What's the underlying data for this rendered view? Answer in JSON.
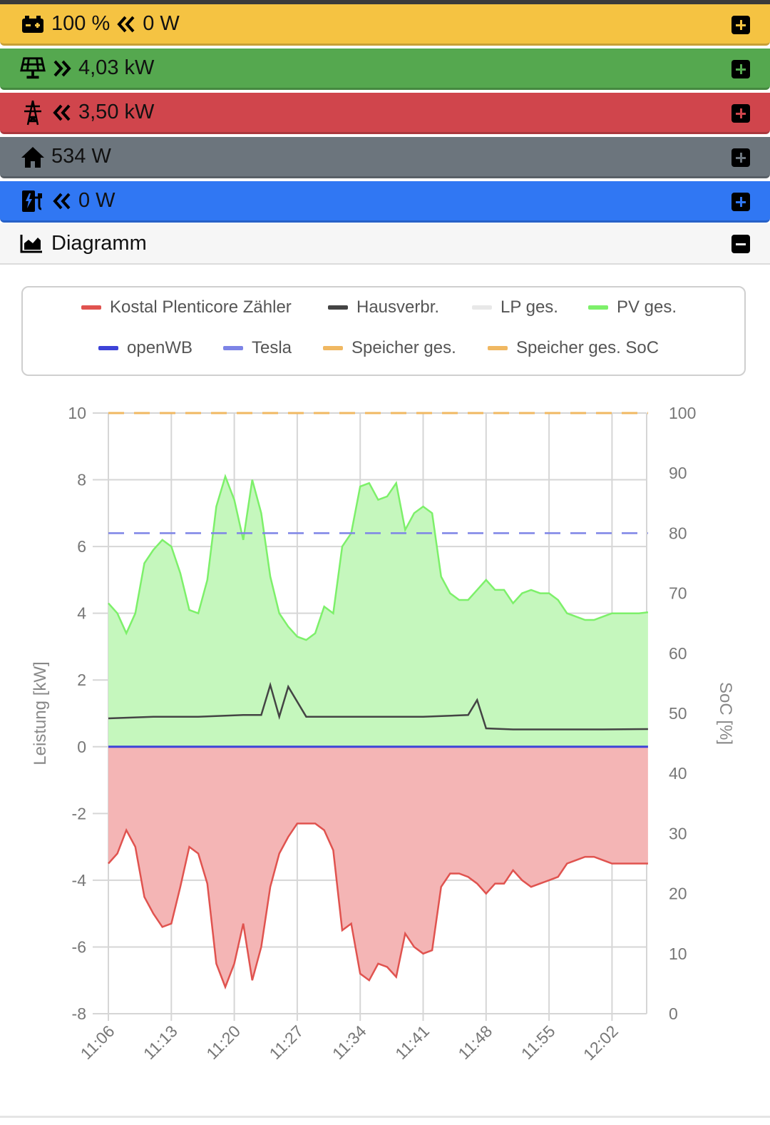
{
  "rows": {
    "battery": {
      "soc": "100 %",
      "power": "0 W",
      "color": "#f5c342"
    },
    "pv": {
      "power": "4,03 kW",
      "color": "#55a84f"
    },
    "grid": {
      "power": "3,50 kW",
      "color": "#d0454c"
    },
    "house": {
      "power": "534 W",
      "color": "#6c757d"
    },
    "charge": {
      "power": "0 W",
      "color": "#3077f3"
    }
  },
  "diagram": {
    "title": "Diagramm"
  },
  "chart_data": {
    "type": "area",
    "legend": [
      {
        "name": "Kostal Plenticore Zähler",
        "color": "#e0534f"
      },
      {
        "name": "Hausverbr.",
        "color": "#444444"
      },
      {
        "name": "LP ges.",
        "color": "#e8e8e8"
      },
      {
        "name": "PV ges.",
        "color": "#7df06a"
      },
      {
        "name": "openWB",
        "color": "#3d43d8"
      },
      {
        "name": "Tesla",
        "color": "#7d84e6"
      },
      {
        "name": "Speicher ges.",
        "color": "#f0b862"
      },
      {
        "name": "Speicher ges. SoC",
        "color": "#f0b862"
      }
    ],
    "ylabel": "Leistung [kW]",
    "y2label": "SoC [%]",
    "ylim": [
      -8,
      10
    ],
    "y2lim": [
      0,
      100
    ],
    "yticks": [
      "10",
      "8",
      "6",
      "4",
      "2",
      "0",
      "-2",
      "-4",
      "-6",
      "-8"
    ],
    "y2ticks": [
      "100",
      "90",
      "80",
      "70",
      "60",
      "50",
      "40",
      "30",
      "20",
      "10",
      "0"
    ],
    "xticks": [
      "11:06",
      "11:13",
      "11:20",
      "11:27",
      "11:34",
      "11:41",
      "11:48",
      "11:55",
      "12:02"
    ],
    "x_range_minutes": [
      0,
      60
    ],
    "series": [
      {
        "name": "PV ges.",
        "x": [
          0,
          1,
          2,
          3,
          4,
          5,
          6,
          7,
          8,
          9,
          10,
          11,
          12,
          13,
          14,
          15,
          16,
          17,
          18,
          19,
          20,
          21,
          22,
          23,
          24,
          25,
          26,
          27,
          28,
          29,
          30,
          31,
          32,
          33,
          34,
          35,
          36,
          37,
          38,
          39,
          40,
          41,
          42,
          43,
          44,
          45,
          46,
          47,
          48,
          49,
          50,
          51,
          52,
          53,
          54,
          55,
          56,
          57,
          58,
          59,
          60
        ],
        "values": [
          4.3,
          4.0,
          3.4,
          4.0,
          5.5,
          5.9,
          6.2,
          6.0,
          5.2,
          4.1,
          4.0,
          5.0,
          7.2,
          8.1,
          7.4,
          6.2,
          8.0,
          7.0,
          5.1,
          4.0,
          3.6,
          3.3,
          3.2,
          3.4,
          4.2,
          4.0,
          6.0,
          6.4,
          7.8,
          7.9,
          7.4,
          7.5,
          7.9,
          6.5,
          7.0,
          7.2,
          7.0,
          5.1,
          4.6,
          4.4,
          4.4,
          4.7,
          5.0,
          4.7,
          4.7,
          4.3,
          4.6,
          4.7,
          4.6,
          4.6,
          4.4,
          4.0,
          3.9,
          3.8,
          3.8,
          3.9,
          4.0,
          4.0,
          4.0,
          4.0,
          4.03
        ]
      },
      {
        "name": "Hausverbr.",
        "x": [
          0,
          5,
          10,
          15,
          17,
          18,
          19,
          20,
          22,
          25,
          30,
          35,
          40,
          41,
          42,
          45,
          50,
          55,
          60
        ],
        "values": [
          0.85,
          0.9,
          0.9,
          0.95,
          0.95,
          1.85,
          0.9,
          1.8,
          0.9,
          0.9,
          0.9,
          0.9,
          0.95,
          1.4,
          0.55,
          0.52,
          0.52,
          0.52,
          0.53
        ]
      },
      {
        "name": "Kostal Plenticore Zähler",
        "x": [
          0,
          1,
          2,
          3,
          4,
          5,
          6,
          7,
          8,
          9,
          10,
          11,
          12,
          13,
          14,
          15,
          16,
          17,
          18,
          19,
          20,
          21,
          22,
          23,
          24,
          25,
          26,
          27,
          28,
          29,
          30,
          31,
          32,
          33,
          34,
          35,
          36,
          37,
          38,
          39,
          40,
          41,
          42,
          43,
          44,
          45,
          46,
          47,
          48,
          49,
          50,
          51,
          52,
          53,
          54,
          55,
          56,
          57,
          58,
          59,
          60
        ],
        "values": [
          -3.5,
          -3.2,
          -2.5,
          -3.0,
          -4.5,
          -5.0,
          -5.4,
          -5.3,
          -4.2,
          -3.0,
          -3.2,
          -4.1,
          -6.5,
          -7.2,
          -6.5,
          -5.3,
          -7.0,
          -6.0,
          -4.2,
          -3.2,
          -2.7,
          -2.3,
          -2.3,
          -2.3,
          -2.5,
          -3.1,
          -5.5,
          -5.3,
          -6.8,
          -7.0,
          -6.5,
          -6.6,
          -6.9,
          -5.6,
          -6.0,
          -6.2,
          -6.1,
          -4.2,
          -3.8,
          -3.8,
          -3.9,
          -4.1,
          -4.4,
          -4.1,
          -4.1,
          -3.7,
          -4.0,
          -4.2,
          -4.1,
          -4.0,
          -3.9,
          -3.5,
          -3.4,
          -3.3,
          -3.3,
          -3.4,
          -3.5,
          -3.5,
          -3.5,
          -3.5,
          -3.5
        ]
      },
      {
        "name": "openWB",
        "x": [
          0,
          60
        ],
        "values": [
          0,
          0
        ]
      },
      {
        "name": "Tesla",
        "x": [
          0,
          60
        ],
        "values": [
          6.4,
          6.4
        ]
      },
      {
        "name": "Speicher ges. SoC",
        "x": [
          0,
          60
        ],
        "values": [
          100,
          100
        ]
      }
    ],
    "grid": true,
    "legend_position": "top"
  }
}
